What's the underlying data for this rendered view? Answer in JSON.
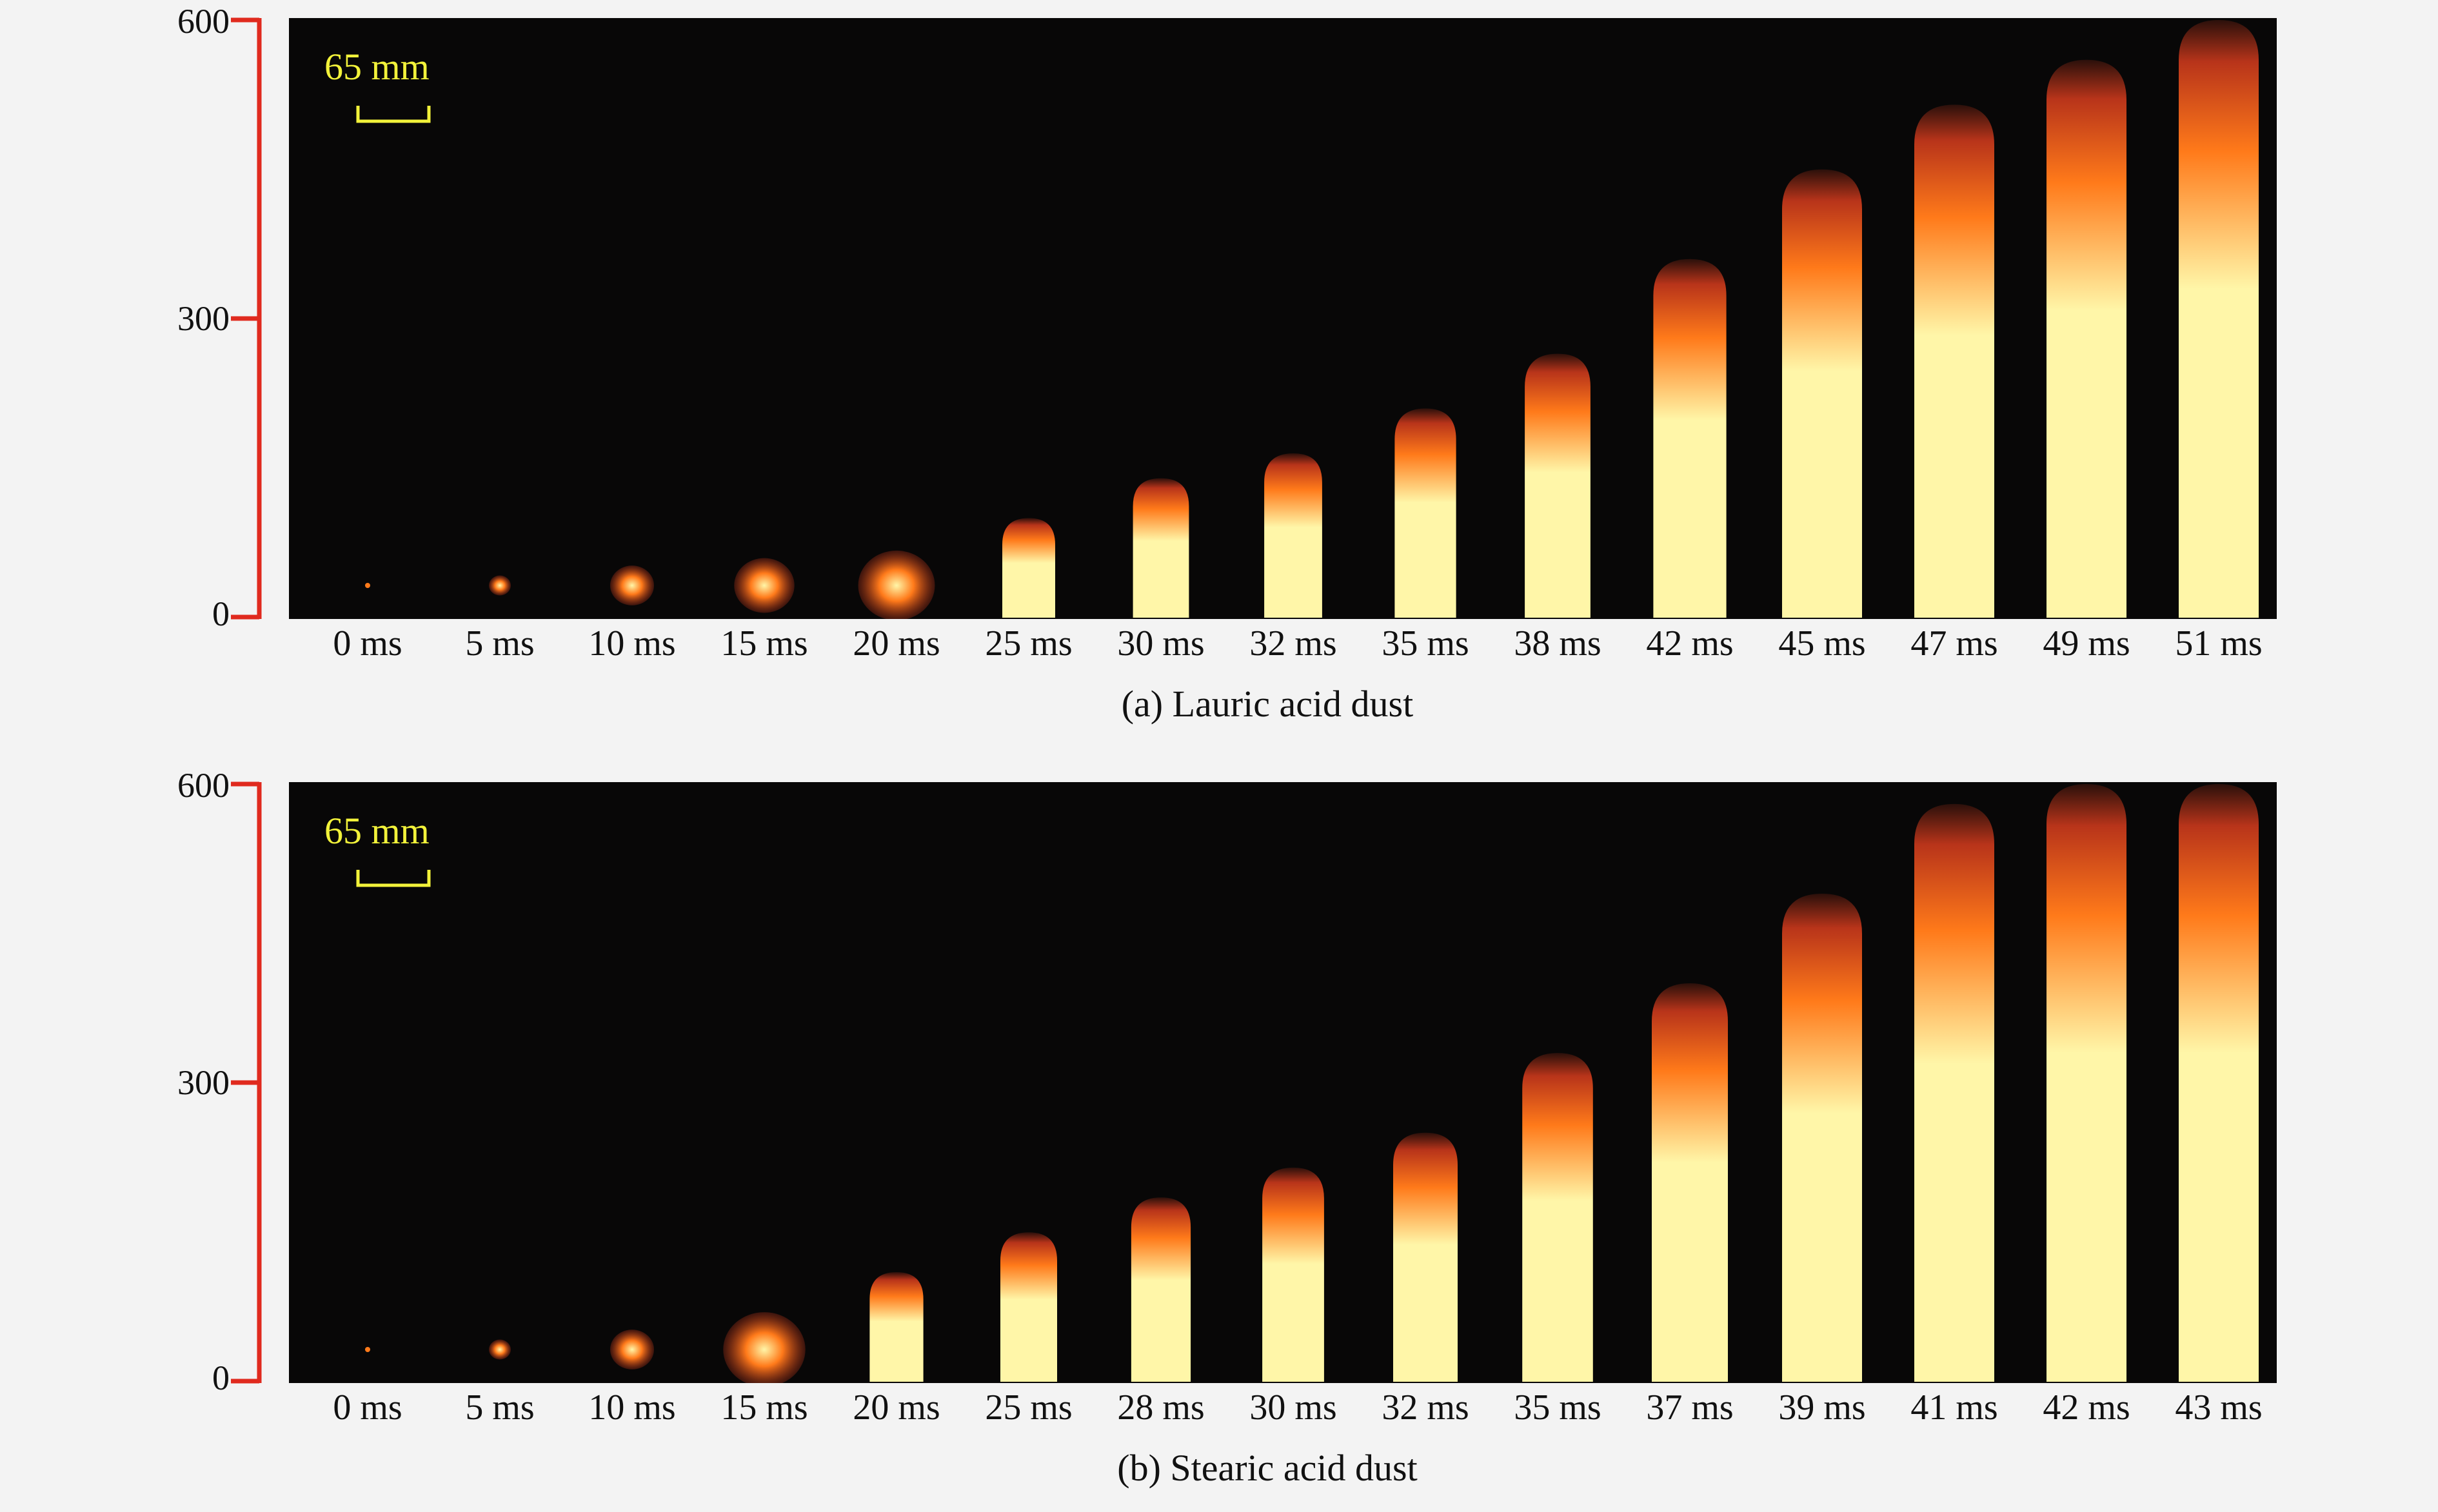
{
  "panels": [
    {
      "id": "a",
      "caption": "(a) Lauric acid dust",
      "scale_bar_label": "65 mm",
      "y_axis_ticks": [
        "600",
        "300",
        "0"
      ],
      "frames": [
        {
          "time": "0 ms",
          "flame_height": 0
        },
        {
          "time": "5 ms",
          "flame_height": 20
        },
        {
          "time": "10 ms",
          "flame_height": 40
        },
        {
          "time": "15 ms",
          "flame_height": 55
        },
        {
          "time": "20 ms",
          "flame_height": 70
        },
        {
          "time": "25 ms",
          "flame_height": 100
        },
        {
          "time": "30 ms",
          "flame_height": 140
        },
        {
          "time": "32 ms",
          "flame_height": 165
        },
        {
          "time": "35 ms",
          "flame_height": 210
        },
        {
          "time": "38 ms",
          "flame_height": 265
        },
        {
          "time": "42 ms",
          "flame_height": 360
        },
        {
          "time": "45 ms",
          "flame_height": 450
        },
        {
          "time": "47 ms",
          "flame_height": 515
        },
        {
          "time": "49 ms",
          "flame_height": 560
        },
        {
          "time": "51 ms",
          "flame_height": 600
        }
      ]
    },
    {
      "id": "b",
      "caption": "(b) Stearic acid dust",
      "scale_bar_label": "65 mm",
      "y_axis_ticks": [
        "600",
        "300",
        "0"
      ],
      "frames": [
        {
          "time": "0 ms",
          "flame_height": 0
        },
        {
          "time": "5 ms",
          "flame_height": 20
        },
        {
          "time": "10 ms",
          "flame_height": 40
        },
        {
          "time": "15 ms",
          "flame_height": 75
        },
        {
          "time": "20 ms",
          "flame_height": 110
        },
        {
          "time": "25 ms",
          "flame_height": 150
        },
        {
          "time": "28 ms",
          "flame_height": 185
        },
        {
          "time": "30 ms",
          "flame_height": 215
        },
        {
          "time": "32 ms",
          "flame_height": 250
        },
        {
          "time": "35 ms",
          "flame_height": 330
        },
        {
          "time": "37 ms",
          "flame_height": 400
        },
        {
          "time": "39 ms",
          "flame_height": 490
        },
        {
          "time": "41 ms",
          "flame_height": 580
        },
        {
          "time": "42 ms",
          "flame_height": 600
        },
        {
          "time": "43 ms",
          "flame_height": 600
        }
      ]
    }
  ],
  "colors": {
    "axis": "#e02a1e",
    "background_frame": "#080707",
    "scale_bar": "#f2f23a",
    "flame_outer": "#b8341a",
    "flame_mid": "#ff7a1a",
    "flame_core": "#fff6a8"
  }
}
